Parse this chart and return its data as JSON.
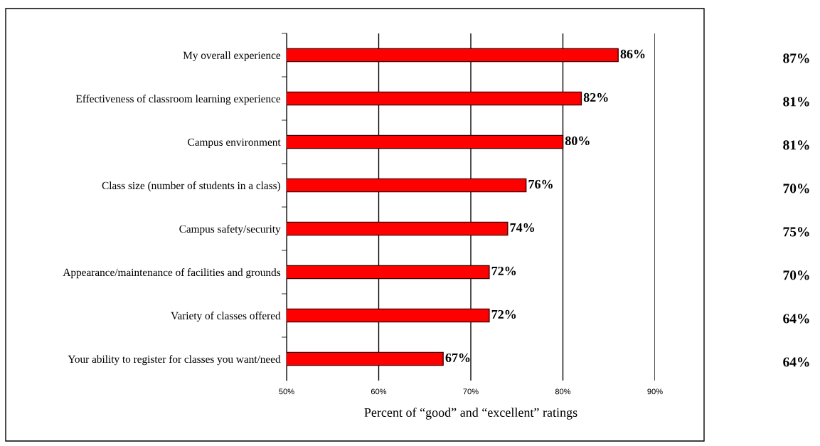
{
  "chart_data": {
    "type": "bar",
    "orientation": "horizontal",
    "xlabel": "Percent of “good” and “excellent” ratings",
    "categories": [
      "My overall experience",
      "Effectiveness of classroom learning experience",
      "Campus environment",
      "Class size (number of students in a class)",
      "Campus safety/security",
      "Appearance/maintenance of facilities and grounds",
      "Variety of classes offered",
      "Your ability to register for classes you want/need"
    ],
    "values": [
      86,
      82,
      80,
      76,
      74,
      72,
      72,
      67
    ],
    "value_labels": [
      "86%",
      "82%",
      "80%",
      "76%",
      "74%",
      "72%",
      "72%",
      "67%"
    ],
    "color": "#ff0000",
    "xlim": [
      50,
      90
    ],
    "xticks": [
      {
        "value": 50,
        "label": "50%"
      },
      {
        "value": 60,
        "label": "60%"
      },
      {
        "value": 70,
        "label": "70%"
      },
      {
        "value": 80,
        "label": "80%"
      },
      {
        "value": 90,
        "label": "90%"
      }
    ],
    "grid": "x",
    "annotations": [
      "87%",
      "81%",
      "81%",
      "70%",
      "75%",
      "70%",
      "64%",
      "64%"
    ]
  }
}
